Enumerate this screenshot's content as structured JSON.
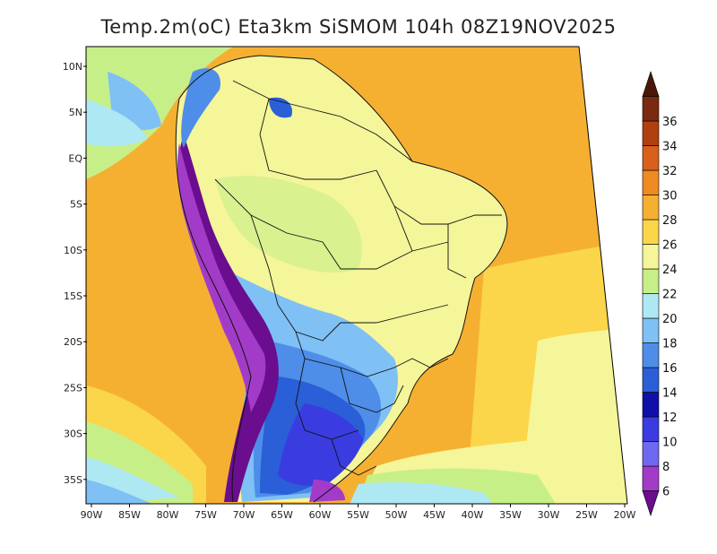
{
  "title": "Temp.2m(oC) Eta3km SiSMOM 104h 08Z19NOV2025",
  "map": {
    "lat_labels": [
      "10N",
      "5N",
      "EQ",
      "5S",
      "10S",
      "15S",
      "20S",
      "25S",
      "30S",
      "35S"
    ],
    "lon_labels": [
      "90W",
      "85W",
      "80W",
      "75W",
      "70W",
      "65W",
      "60W",
      "55W",
      "50W",
      "45W",
      "40W",
      "35W",
      "30W",
      "25W",
      "20W"
    ]
  },
  "colorbar": {
    "labels": [
      "6",
      "8",
      "10",
      "12",
      "14",
      "16",
      "18",
      "20",
      "22",
      "24",
      "26",
      "28",
      "30",
      "32",
      "34",
      "36"
    ],
    "colors": [
      "#6a0d8f",
      "#a23cc8",
      "#6f68f0",
      "#3a3ce0",
      "#1010a8",
      "#2a5fd8",
      "#4e8ee8",
      "#7fc0f5",
      "#aee8f3",
      "#c7ef88",
      "#f5f59a",
      "#fbd54a",
      "#f5b032",
      "#f08a22",
      "#d8601a",
      "#b04010",
      "#7a2a10",
      "#4a1808"
    ]
  }
}
